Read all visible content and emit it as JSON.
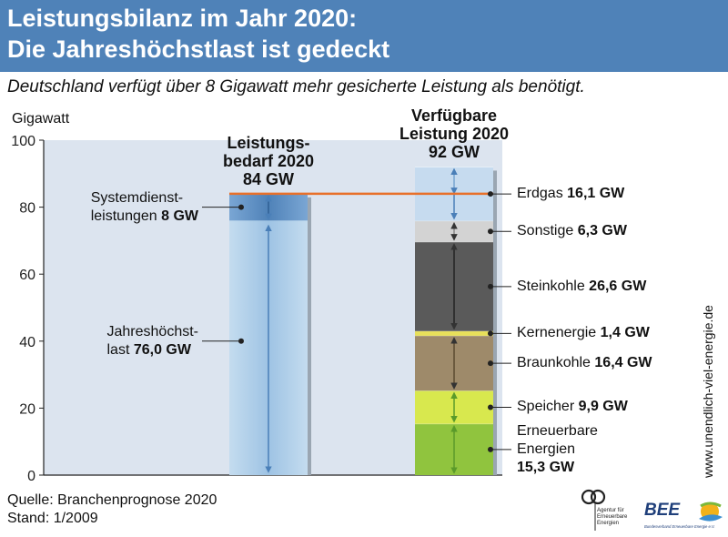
{
  "header": {
    "title_line1": "Leistungsbilanz im Jahr 2020:",
    "title_line2": "Die Jahreshöchstlast ist gedeckt"
  },
  "subtitle": "Deutschland verfügt über 8 Gigawatt mehr gesicherte Leistung als benötigt.",
  "colors": {
    "header_bg": "#4f82b8",
    "plot_bg": "#dce4ef",
    "demand_bar": "#aecde8",
    "system_services": "#5b8fc4",
    "peak_line": "#e8702a",
    "erdgas": "#c6dbef",
    "sonstige": "#d3d3d3",
    "steinkohle": "#5a5a5a",
    "kernenergie": "#e8e05a",
    "braunkohle": "#9e8a6a",
    "speicher": "#d8e84e",
    "erneuerbare": "#90c43e"
  },
  "chart_data": {
    "type": "bar",
    "stacked": true,
    "ylabel": "Gigawatt",
    "ylim": [
      0,
      100
    ],
    "yticks": [
      0,
      20,
      40,
      60,
      80,
      100
    ],
    "grid": false,
    "columns": [
      {
        "key": "demand",
        "label_line1": "Leistungs-",
        "label_line2": "bedarf 2020",
        "total_label": "84 GW",
        "total": 84,
        "segments": [
          {
            "key": "jahreshoechstlast",
            "name_line1": "Jahreshöchst-",
            "name_line2": "last",
            "value": 76.0,
            "value_label": "76,0 GW"
          },
          {
            "key": "systemdienst",
            "name_line1": "Systemdienst-",
            "name_line2": "leistungen",
            "value": 8,
            "value_label": "8 GW"
          }
        ]
      },
      {
        "key": "available",
        "label_line1": "Verfügbare",
        "label_line2": "Leistung 2020",
        "total_label": "92 GW",
        "total": 92,
        "segments": [
          {
            "key": "erneuerbare",
            "name_line1": "Erneuerbare",
            "name_line2": "Energien",
            "value": 15.3,
            "value_label": "15,3 GW"
          },
          {
            "key": "speicher",
            "name": "Speicher",
            "value": 9.9,
            "value_label": "9,9 GW"
          },
          {
            "key": "braunkohle",
            "name": "Braunkohle",
            "value": 16.4,
            "value_label": "16,4 GW"
          },
          {
            "key": "kernenergie",
            "name": "Kernenergie",
            "value": 1.4,
            "value_label": "1,4 GW"
          },
          {
            "key": "steinkohle",
            "name": "Steinkohle",
            "value": 26.6,
            "value_label": "26,6 GW"
          },
          {
            "key": "sonstige",
            "name": "Sonstige",
            "value": 6.3,
            "value_label": "6,3 GW"
          },
          {
            "key": "erdgas",
            "name": "Erdgas",
            "value": 16.1,
            "value_label": "16,1 GW"
          }
        ]
      }
    ],
    "reference_line": {
      "value": 84
    }
  },
  "footer": {
    "source": "Quelle: Branchenprognose 2020",
    "status": "Stand: 1/2009",
    "vertical_url": "www.unendlich-viel-energie.de"
  },
  "logos": {
    "aee_text_line1": "Agentur für",
    "aee_text_line2": "Erneuerbare",
    "aee_text_line3": "Energien",
    "bee_text": "BEE",
    "bee_subtext": "Bundesverband Erneuerbare Energie e.V."
  }
}
